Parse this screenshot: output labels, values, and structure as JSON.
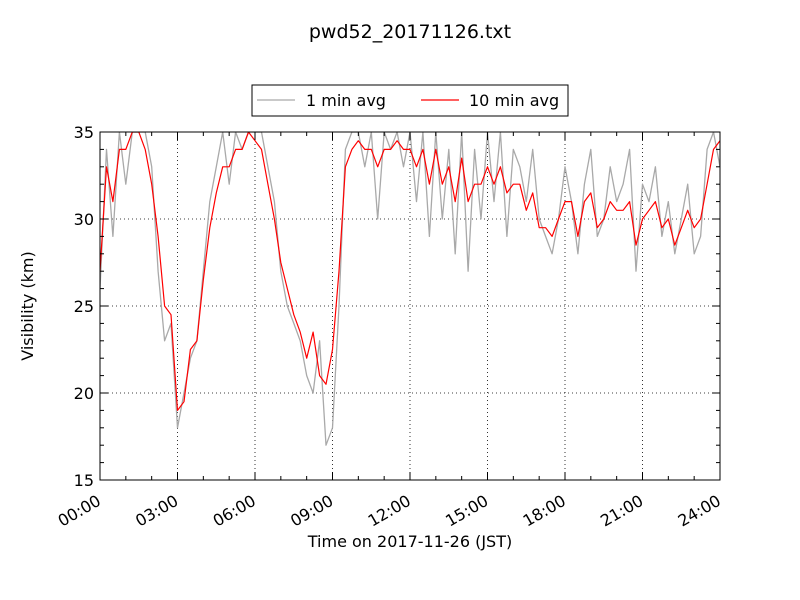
{
  "chart_data": {
    "type": "line",
    "title": "pwd52_20171126.txt",
    "xlabel": "Time on 2017-11-26 (JST)",
    "ylabel": "Visibility (km)",
    "xlim": [
      0,
      24
    ],
    "ylim": [
      15,
      35
    ],
    "x_ticks": [
      0,
      3,
      6,
      9,
      12,
      15,
      18,
      21,
      24
    ],
    "x_tick_labels": [
      "00:00",
      "03:00",
      "06:00",
      "09:00",
      "12:00",
      "15:00",
      "18:00",
      "21:00",
      "24:00"
    ],
    "y_ticks": [
      15,
      20,
      25,
      30,
      35
    ],
    "y_tick_labels": [
      "15",
      "20",
      "25",
      "30",
      "35"
    ],
    "grid": true,
    "legend_position": "top-center",
    "series": [
      {
        "name": "1 min avg",
        "color": "#a9a9a9",
        "x": [
          0,
          0.25,
          0.5,
          0.75,
          1,
          1.25,
          1.5,
          1.75,
          2,
          2.25,
          2.5,
          2.75,
          3,
          3.25,
          3.5,
          3.75,
          4,
          4.25,
          4.5,
          4.75,
          5,
          5.25,
          5.5,
          5.75,
          6,
          6.25,
          6.5,
          6.75,
          7,
          7.25,
          7.5,
          7.75,
          8,
          8.25,
          8.5,
          8.75,
          9,
          9.25,
          9.5,
          9.75,
          10,
          10.25,
          10.5,
          10.75,
          11,
          11.25,
          11.5,
          11.75,
          12,
          12.25,
          12.5,
          12.75,
          13,
          13.25,
          13.5,
          13.75,
          14,
          14.25,
          14.5,
          14.75,
          15,
          15.25,
          15.5,
          15.75,
          16,
          16.25,
          16.5,
          16.75,
          17,
          17.25,
          17.5,
          17.75,
          18,
          18.25,
          18.5,
          18.75,
          19,
          19.25,
          19.5,
          19.75,
          20,
          20.25,
          20.5,
          20.75,
          21,
          21.25,
          21.5,
          21.75,
          22,
          22.25,
          22.5,
          22.75,
          23,
          23.25,
          23.5,
          23.75,
          24
        ],
        "values": [
          26,
          34,
          29,
          35,
          32,
          35,
          35,
          35,
          33,
          27,
          23,
          24,
          18,
          20,
          22,
          23,
          27,
          31,
          33,
          35,
          32,
          35,
          34,
          35,
          35,
          35,
          33,
          31,
          27,
          25,
          24,
          23,
          21,
          20,
          23,
          17,
          18,
          25,
          34,
          35,
          35,
          33,
          35,
          30,
          35,
          34,
          35,
          33,
          35,
          31,
          35,
          29,
          35,
          30,
          34,
          28,
          35,
          27,
          34,
          30,
          35,
          31,
          35,
          29,
          34,
          33,
          31,
          34,
          30,
          29,
          28,
          30,
          33,
          31,
          28,
          32,
          34,
          29,
          30,
          33,
          31,
          32,
          34,
          27,
          32,
          31,
          33,
          29,
          31,
          28,
          30,
          32,
          28,
          29,
          34,
          35,
          33
        ]
      },
      {
        "name": "10 min avg",
        "color": "#ff0000",
        "x": [
          0,
          0.25,
          0.5,
          0.75,
          1,
          1.25,
          1.5,
          1.75,
          2,
          2.25,
          2.5,
          2.75,
          3,
          3.25,
          3.5,
          3.75,
          4,
          4.25,
          4.5,
          4.75,
          5,
          5.25,
          5.5,
          5.75,
          6,
          6.25,
          6.5,
          6.75,
          7,
          7.25,
          7.5,
          7.75,
          8,
          8.25,
          8.5,
          8.75,
          9,
          9.25,
          9.5,
          9.75,
          10,
          10.25,
          10.5,
          10.75,
          11,
          11.25,
          11.5,
          11.75,
          12,
          12.25,
          12.5,
          12.75,
          13,
          13.25,
          13.5,
          13.75,
          14,
          14.25,
          14.5,
          14.75,
          15,
          15.25,
          15.5,
          15.75,
          16,
          16.25,
          16.5,
          16.75,
          17,
          17.25,
          17.5,
          17.75,
          18,
          18.25,
          18.5,
          18.75,
          19,
          19.25,
          19.5,
          19.75,
          20,
          20.25,
          20.5,
          20.75,
          21,
          21.25,
          21.5,
          21.75,
          22,
          22.25,
          22.5,
          22.75,
          23,
          23.25,
          23.5,
          23.75,
          24
        ],
        "values": [
          27,
          33,
          31,
          34,
          34,
          35,
          35,
          34,
          32,
          29,
          25,
          24.5,
          19,
          19.5,
          22.5,
          23,
          26.5,
          29.5,
          31.5,
          33,
          33,
          34,
          34,
          35,
          34.5,
          34,
          32,
          30,
          27.5,
          26,
          24.5,
          23.5,
          22,
          23.5,
          21,
          20.5,
          22.5,
          27,
          33,
          34,
          34.5,
          34,
          34,
          33,
          34,
          34,
          34.5,
          34,
          34,
          33,
          34,
          32,
          34,
          32,
          33,
          31,
          33.5,
          31,
          32,
          32,
          33,
          32,
          33,
          31.5,
          32,
          32,
          30.5,
          31.5,
          29.5,
          29.5,
          29,
          30,
          31,
          31,
          29,
          31,
          31.5,
          29.5,
          30,
          31,
          30.5,
          30.5,
          31,
          28.5,
          30,
          30.5,
          31,
          29.5,
          30,
          28.5,
          29.5,
          30.5,
          29.5,
          30,
          32,
          34,
          34.5
        ]
      }
    ]
  }
}
